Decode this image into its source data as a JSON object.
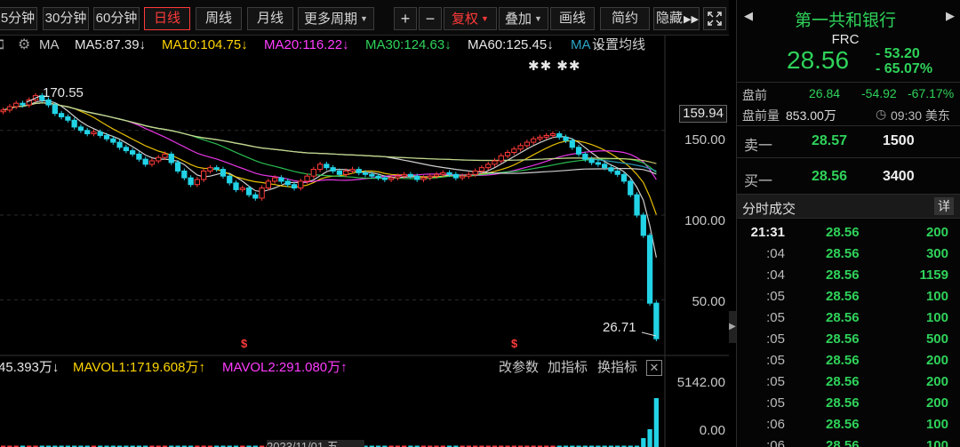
{
  "toolbar": {
    "m5": "5分钟",
    "m30": "30分钟",
    "m60": "60分钟",
    "daily": "日线",
    "weekly": "周线",
    "monthly": "月线",
    "more_periods": "更多周期",
    "zoom_in": "+",
    "zoom_out": "−",
    "adjust": "复权",
    "overlay": "叠加",
    "draw_line": "画线",
    "simplify": "简约",
    "hide": "隐藏",
    "more_icon": "double-chevron-right-icon",
    "fullscreen_icon": "fullscreen-icon"
  },
  "ma_legend": {
    "label": "MA",
    "ma5": "MA5:87.39↓",
    "ma10": "MA10:104.75↓",
    "ma20": "MA20:116.22↓",
    "ma30": "MA30:124.63↓",
    "ma60": "MA60:125.45↓",
    "ma_partial": "MA",
    "settings": "设置均线",
    "colors": {
      "ma5": "#e6e6e6",
      "ma10": "#ffd400",
      "ma20": "#ff3cff",
      "ma30": "#2fd25a",
      "ma60": "#e6e6e6",
      "ma120": "#2aa6c8",
      "ma250": "#d9d97a"
    }
  },
  "chart": {
    "annotations": {
      "high": "170.55",
      "low": "26.71",
      "markers": "✱✱ ✱✱"
    },
    "current_price_box": "159.94",
    "event_mark": "$",
    "date_label": "2023/11/01 五"
  },
  "chart_data": {
    "type": "candlestick",
    "y_axis_ticks": [
      "150.00",
      "100.00",
      "50.00"
    ],
    "ylim": [
      25,
      185
    ],
    "candles_close": [
      162,
      164,
      166,
      165,
      168,
      170.5,
      168,
      165,
      160,
      158,
      156,
      152,
      150,
      148,
      149,
      147,
      145,
      143,
      140,
      138,
      136,
      133,
      130,
      132,
      134,
      136,
      131,
      126,
      122,
      118,
      121,
      126,
      128,
      127,
      123,
      119,
      115,
      116,
      112,
      110,
      116,
      120,
      122,
      120,
      118,
      116,
      120,
      123,
      127,
      130,
      128,
      126,
      124,
      126,
      127,
      125,
      124,
      123,
      122,
      121,
      122,
      123,
      124,
      123,
      121,
      122,
      123,
      124,
      125,
      124,
      122,
      123,
      124,
      126,
      128,
      130,
      132,
      135,
      137,
      139,
      141,
      143,
      145,
      146,
      147,
      148,
      146,
      144,
      140,
      136,
      133,
      131,
      130,
      128,
      126,
      124,
      120,
      112,
      100,
      88,
      48,
      27
    ],
    "volume": {
      "vol_value": "45.393万↓",
      "mavol1": "MAVOL1:1719.608万↑",
      "mavol2": "MAVOL2:291.080万↑",
      "axis_ticks": [
        "5142.00",
        "0.00"
      ]
    }
  },
  "volume_tools": {
    "change_params": "改参数",
    "add_indicator": "加指标",
    "switch_indicator": "换指标",
    "close": "✕"
  },
  "quote": {
    "name": "第一共和银行",
    "ticker": "FRC",
    "price": "28.56",
    "change": "- 53.20",
    "change_pct": "- 65.07%",
    "premarket_label": "盘前",
    "premarket_price": "26.84",
    "premarket_change": "-54.92",
    "premarket_pct": "-67.17%",
    "premarket_vol_label": "盘前量",
    "premarket_vol": "853.00万",
    "time": "09:30 美东"
  },
  "order_book": {
    "sell1_label": "卖一",
    "sell1_price": "28.57",
    "sell1_vol": "1500",
    "buy1_label": "买一",
    "buy1_price": "28.56",
    "buy1_vol": "3400"
  },
  "ticks": {
    "title": "分时成交",
    "detail": "详",
    "rows": [
      {
        "time": "21:31",
        "price": "28.56",
        "vol": "200"
      },
      {
        "time": ":04",
        "price": "28.56",
        "vol": "300"
      },
      {
        "time": ":04",
        "price": "28.56",
        "vol": "1159"
      },
      {
        "time": ":05",
        "price": "28.56",
        "vol": "100"
      },
      {
        "time": ":05",
        "price": "28.56",
        "vol": "100"
      },
      {
        "time": ":05",
        "price": "28.56",
        "vol": "500"
      },
      {
        "time": ":05",
        "price": "28.56",
        "vol": "200"
      },
      {
        "time": ":05",
        "price": "28.56",
        "vol": "200"
      },
      {
        "time": ":05",
        "price": "28.56",
        "vol": "200"
      },
      {
        "time": ":06",
        "price": "28.56",
        "vol": "100"
      },
      {
        "time": ":06",
        "price": "28.56",
        "vol": "100"
      }
    ]
  }
}
